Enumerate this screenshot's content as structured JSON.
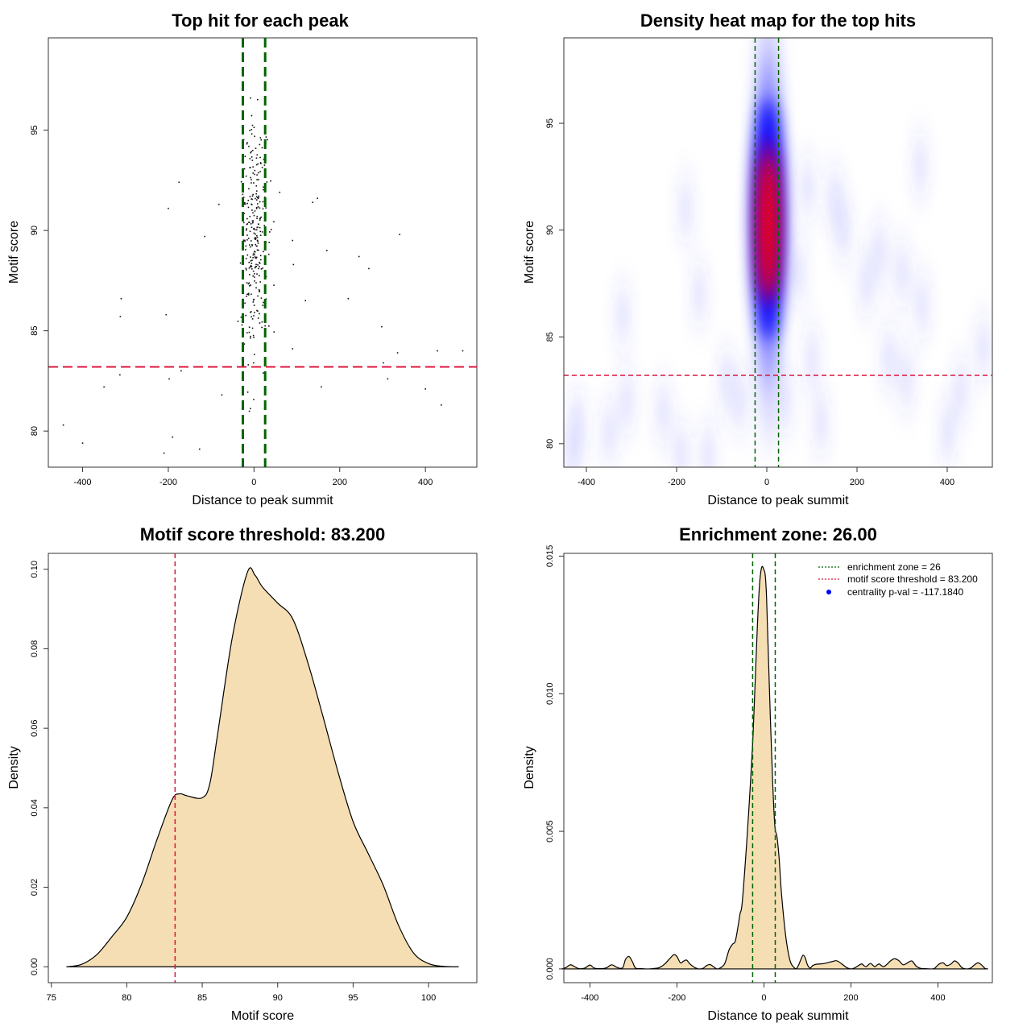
{
  "chart_data": [
    {
      "id": "scatter",
      "type": "scatter",
      "title": "Top hit for each peak",
      "xlabel": "Distance to peak summit",
      "ylabel": "Motif score",
      "xlim": [
        -480,
        520
      ],
      "ylim": [
        78.2,
        99.6
      ],
      "xticks": [
        -400,
        -200,
        0,
        200,
        400
      ],
      "yticks": [
        80,
        85,
        90,
        95
      ],
      "threshold_y": 83.2,
      "zone_x": [
        -26,
        26
      ],
      "outliers": [
        [
          -445,
          80.3
        ],
        [
          -400,
          79.4
        ],
        [
          -310,
          86.6
        ],
        [
          -312,
          85.7
        ],
        [
          -350,
          82.2
        ],
        [
          -313,
          82.8
        ],
        [
          -205,
          85.8
        ],
        [
          -200,
          91.1
        ],
        [
          -198,
          82.6
        ],
        [
          -190,
          79.7
        ],
        [
          -175,
          92.4
        ],
        [
          -170,
          83.0
        ],
        [
          -115,
          89.7
        ],
        [
          -210,
          78.9
        ],
        [
          -127,
          79.1
        ],
        [
          -75,
          81.8
        ],
        [
          -82,
          91.3
        ],
        [
          60,
          91.9
        ],
        [
          90,
          89.5
        ],
        [
          92,
          88.3
        ],
        [
          90,
          84.1
        ],
        [
          137,
          91.4
        ],
        [
          148,
          91.6
        ],
        [
          170,
          89.0
        ],
        [
          157,
          82.2
        ],
        [
          120,
          86.5
        ],
        [
          245,
          88.7
        ],
        [
          268,
          88.1
        ],
        [
          220,
          86.6
        ],
        [
          298,
          85.2
        ],
        [
          302,
          83.4
        ],
        [
          312,
          82.6
        ],
        [
          335,
          83.9
        ],
        [
          340,
          89.8
        ],
        [
          400,
          82.1
        ],
        [
          428,
          84.0
        ],
        [
          437,
          81.3
        ],
        [
          487,
          84.0
        ]
      ],
      "cluster_seed": 7,
      "cluster_count": 300
    },
    {
      "id": "heatmap",
      "type": "heatmap",
      "title": "Density heat map for the top hits",
      "xlabel": "Distance to peak summit",
      "ylabel": "Motif score",
      "xlim": [
        -450,
        500
      ],
      "ylim": [
        78.9,
        99.0
      ],
      "xticks": [
        -400,
        -200,
        0,
        200,
        400
      ],
      "yticks": [
        80,
        85,
        90,
        95
      ],
      "threshold_y": 83.2,
      "zone_x": [
        -26,
        26
      ],
      "peak": {
        "x": 3,
        "y": 90.5
      },
      "blobs": [
        [
          -320,
          86.0
        ],
        [
          -310,
          82.0
        ],
        [
          -420,
          81.0
        ],
        [
          -430,
          79.5
        ],
        [
          -350,
          80.5
        ],
        [
          -230,
          81.5
        ],
        [
          -180,
          91.0
        ],
        [
          -150,
          87.0
        ],
        [
          -90,
          83.0
        ],
        [
          -60,
          82.0
        ],
        [
          40,
          82.0
        ],
        [
          70,
          88.0
        ],
        [
          90,
          92.0
        ],
        [
          100,
          84.0
        ],
        [
          120,
          81.0
        ],
        [
          -190,
          79.5
        ],
        [
          -130,
          79.5
        ],
        [
          150,
          91.5
        ],
        [
          170,
          90.0
        ],
        [
          220,
          87.5
        ],
        [
          250,
          89.0
        ],
        [
          270,
          84.0
        ],
        [
          300,
          88.0
        ],
        [
          310,
          83.0
        ],
        [
          340,
          93.0
        ],
        [
          345,
          86.5
        ],
        [
          400,
          80.5
        ],
        [
          430,
          82.5
        ],
        [
          480,
          84.5
        ]
      ]
    },
    {
      "id": "score_density",
      "type": "area",
      "title": "Motif score threshold: 83.200",
      "xlabel": "Motif score",
      "ylabel": "Density",
      "xlim": [
        74.8,
        103.2
      ],
      "ylim": [
        -0.004,
        0.104
      ],
      "xticks": [
        75,
        80,
        85,
        90,
        95,
        100
      ],
      "xtick_labels": [
        "75",
        "80",
        "85",
        "90",
        "95",
        "100"
      ],
      "yticks": [
        0.0,
        0.02,
        0.04,
        0.06,
        0.08,
        0.1
      ],
      "ytick_labels": [
        "0.00",
        "0.02",
        "0.04",
        "0.06",
        "0.08",
        "0.10"
      ],
      "threshold_x": 83.2,
      "x": [
        76,
        77,
        78,
        79,
        80,
        81,
        82,
        83,
        83.5,
        84,
        85,
        85.5,
        86,
        87,
        88,
        88.5,
        89,
        90,
        91,
        92,
        93,
        94,
        95,
        96,
        97,
        98,
        99,
        100,
        101,
        102
      ],
      "y": [
        0.0,
        0.0006,
        0.003,
        0.0075,
        0.0125,
        0.021,
        0.032,
        0.042,
        0.0435,
        0.043,
        0.0425,
        0.046,
        0.058,
        0.083,
        0.0993,
        0.0985,
        0.0955,
        0.0915,
        0.0875,
        0.0765,
        0.063,
        0.049,
        0.0365,
        0.0285,
        0.0205,
        0.0105,
        0.0035,
        0.0008,
        0.0001,
        0.0
      ]
    },
    {
      "id": "distance_density",
      "type": "area",
      "title": "Enrichment zone: 26.00",
      "xlabel": "Distance to peak summit",
      "ylabel": "Density",
      "xlim": [
        -460,
        525
      ],
      "ylim": [
        -0.0005,
        0.0151
      ],
      "xticks": [
        -400,
        -200,
        0,
        200,
        400
      ],
      "xtick_labels": [
        "-400",
        "-200",
        "0",
        "200",
        "400"
      ],
      "yticks": [
        0.0,
        0.005,
        0.01,
        0.015
      ],
      "ytick_labels": [
        "0.000",
        "0.005",
        "0.010",
        "0.015"
      ],
      "zone_x": [
        -26,
        26
      ],
      "legend": {
        "position": "top-right",
        "entries": [
          "enrichment zone = 26",
          "motif score threshold = 83.200",
          "centrality p-val = -117.1840"
        ],
        "colors": [
          "#006400",
          "#dc143c",
          "#0000ff"
        ]
      },
      "x": [
        -465,
        -455,
        -445,
        -435,
        -425,
        -412,
        -400,
        -390,
        -375,
        -362,
        -350,
        -337,
        -325,
        -318,
        -310,
        -302,
        -295,
        -280,
        -265,
        -250,
        -240,
        -228,
        -215,
        -207,
        -200,
        -192,
        -185,
        -178,
        -170,
        -160,
        -150,
        -140,
        -132,
        -124,
        -116,
        -108,
        -100,
        -90,
        -80,
        -72,
        -66,
        -60,
        -55,
        -50,
        -40,
        -32,
        -25,
        -20,
        -15,
        -10,
        -5,
        0,
        3,
        6,
        10,
        15,
        20,
        25,
        30,
        35,
        40,
        50,
        60,
        70,
        75,
        80,
        85,
        90,
        95,
        100,
        106,
        112,
        120,
        130,
        140,
        150,
        160,
        165,
        170,
        180,
        190,
        200,
        210,
        220,
        225,
        230,
        235,
        240,
        245,
        250,
        255,
        260,
        265,
        270,
        275,
        280,
        285,
        290,
        300,
        310,
        320,
        330,
        340,
        350,
        360,
        372,
        382,
        392,
        402,
        412,
        420,
        430,
        438,
        446,
        455,
        465,
        475,
        485,
        492,
        500,
        508,
        515
      ],
      "y": [
        0.0,
        5e-05,
        0.00015,
        8e-05,
        1e-05,
        3e-05,
        0.00014,
        3e-05,
        1e-05,
        4e-05,
        0.00015,
        5e-05,
        4e-05,
        0.00035,
        0.00045,
        0.00025,
        3e-05,
        1e-05,
        0.0,
        2e-05,
        5e-05,
        0.00018,
        0.0004,
        0.00052,
        0.00045,
        0.00022,
        0.00028,
        0.00032,
        0.00018,
        6e-05,
        0.0,
        2e-05,
        0.00012,
        0.00016,
        8e-05,
        0.0,
        4e-05,
        0.0002,
        0.0007,
        0.0009,
        0.001,
        0.0015,
        0.002,
        0.0024,
        0.0045,
        0.0065,
        0.0085,
        0.0105,
        0.0125,
        0.014,
        0.0146,
        0.0145,
        0.0143,
        0.0135,
        0.0115,
        0.009,
        0.0068,
        0.0052,
        0.0048,
        0.004,
        0.0028,
        0.0012,
        0.0003,
        4e-05,
        2e-05,
        0.00015,
        0.00035,
        0.0005,
        0.0004,
        0.00015,
        3e-05,
        0.00012,
        0.00017,
        0.00018,
        0.0002,
        0.00024,
        0.00028,
        0.0003,
        0.00028,
        0.00017,
        5e-05,
        0.0,
        5e-05,
        0.00015,
        0.00018,
        0.00012,
        8e-05,
        0.00015,
        0.0002,
        0.00014,
        8e-05,
        0.00014,
        0.00018,
        0.00012,
        8e-05,
        0.00013,
        0.0002,
        0.00028,
        0.00037,
        0.0003,
        0.00015,
        0.00022,
        0.00029,
        0.0001,
        2e-05,
        1e-05,
        0.0,
        2e-05,
        0.00017,
        0.00022,
        0.00012,
        0.00018,
        0.00029,
        0.00022,
        5e-05,
        0.0,
        3e-05,
        0.00016,
        0.00022,
        0.00015,
        2e-05,
        0.0
      ]
    }
  ]
}
